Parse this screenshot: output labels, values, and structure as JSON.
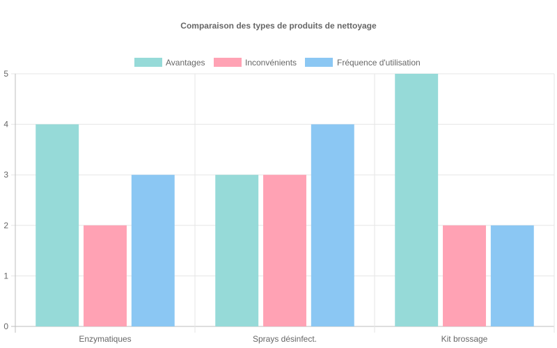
{
  "chart_data": {
    "type": "bar",
    "title": "Comparaison des types de produits de nettoyage",
    "xlabel": "",
    "ylabel": "",
    "categories": [
      "Enzymatiques",
      "Sprays désinfect.",
      "Kit brossage"
    ],
    "series": [
      {
        "name": "Avantages",
        "values": [
          4,
          3,
          5
        ],
        "color": "#96dad8",
        "border": "#4bc0c0"
      },
      {
        "name": "Inconvénients",
        "values": [
          2,
          3,
          2
        ],
        "color": "#ffa2b4",
        "border": "#ff6384"
      },
      {
        "name": "Fréquence d'utilisation",
        "values": [
          3,
          4,
          2
        ],
        "color": "#8bc7f3",
        "border": "#36a2eb"
      }
    ],
    "ylim": [
      0,
      5
    ],
    "yticks": [
      0,
      1,
      2,
      3,
      4,
      5
    ],
    "grid": true,
    "legend_position": "top"
  }
}
